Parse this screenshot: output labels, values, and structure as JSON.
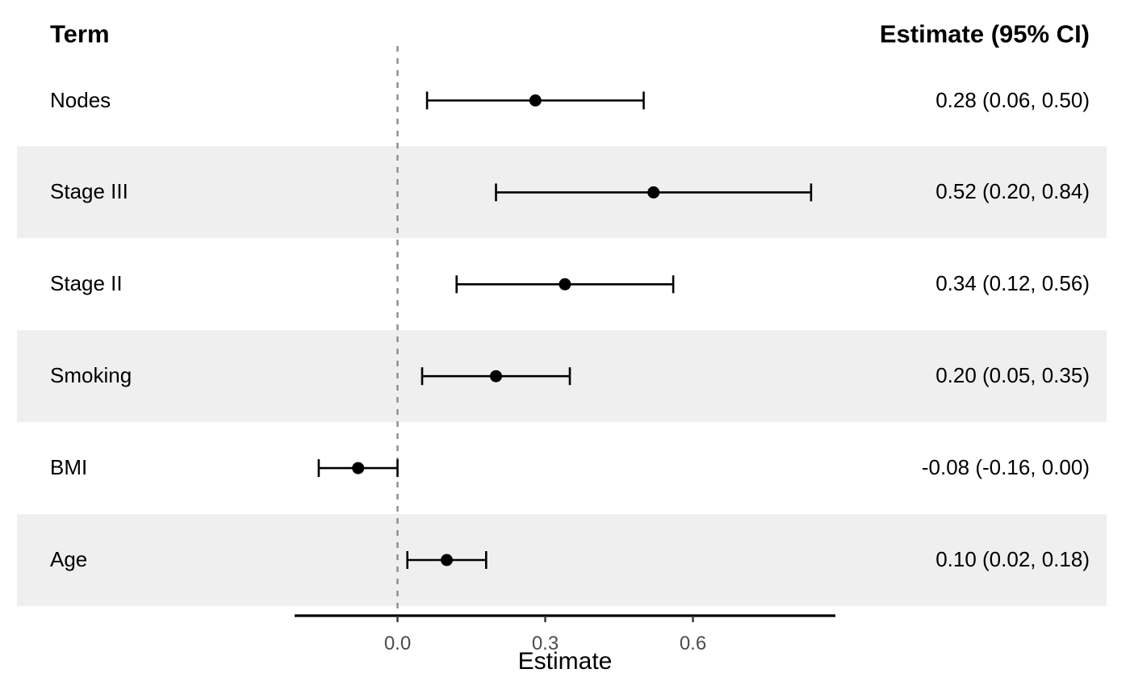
{
  "header": {
    "term_label": "Term",
    "estimate_label": "Estimate (95% CI)"
  },
  "axis": {
    "title": "Estimate",
    "tick_labels": [
      "0.0",
      "0.3",
      "0.6"
    ],
    "tick_values": [
      0.0,
      0.3,
      0.6
    ]
  },
  "colors": {
    "background": "#ffffff",
    "stripe": "#efefef",
    "point": "#000000",
    "error_bar": "#000000",
    "reference_line": "#8c8c8c",
    "axis_line": "#000000",
    "tick_mark": "#333333",
    "tick_label": "#4d4d4d",
    "text": "#000000"
  },
  "chart_data": {
    "type": "scatter",
    "variant": "forest-plot",
    "title": "",
    "xlabel": "Estimate",
    "ylabel": "Term",
    "xlim": [
      -0.21,
      0.89
    ],
    "xticks": [
      0.0,
      0.3,
      0.6
    ],
    "reference_line_x": 0.0,
    "grid": "off",
    "legend": "none",
    "categories": [
      "Nodes",
      "Stage III",
      "Stage II",
      "Smoking",
      "BMI",
      "Age"
    ],
    "series": [
      {
        "name": "Estimate (95% CI)",
        "values": [
          0.28,
          0.52,
          0.34,
          0.2,
          -0.08,
          0.1
        ],
        "ci_low": [
          0.06,
          0.2,
          0.12,
          0.05,
          -0.16,
          0.02
        ],
        "ci_high": [
          0.5,
          0.84,
          0.56,
          0.35,
          0.0,
          0.18
        ]
      }
    ],
    "value_labels": [
      "0.28 (0.06, 0.50)",
      "0.52 (0.20, 0.84)",
      "0.34 (0.12, 0.56)",
      "0.20 (0.05, 0.35)",
      "-0.08 (-0.16, 0.00)",
      "0.10 (0.02, 0.18)"
    ],
    "striped_rows": [
      1,
      3,
      5
    ]
  }
}
